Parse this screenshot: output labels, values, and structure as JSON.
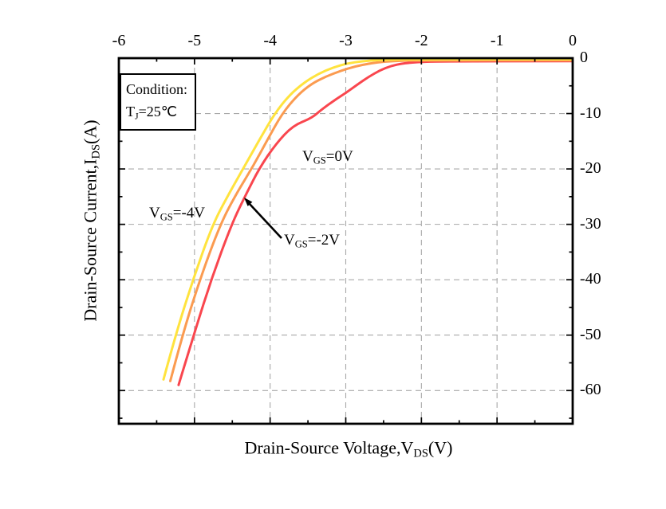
{
  "figure": {
    "background": "#ffffff",
    "condition_box": {
      "line1": "Condition:",
      "line2_pre": "T",
      "line2_sub": "J",
      "line2_post": "=25℃"
    },
    "x_axis": {
      "title_pre": "Drain-Source Voltage,V",
      "title_sub": "DS",
      "title_post": "(V)",
      "tick_labels": [
        "-6",
        "-5",
        "-4",
        "-3",
        "-2",
        "-1",
        "0"
      ]
    },
    "y_axis": {
      "title_pre": "Drain-Source Current,I",
      "title_sub": "DS",
      "title_post": "(A)",
      "tick_labels": [
        "0",
        "-10",
        "-20",
        "-30",
        "-40",
        "-50",
        "-60"
      ]
    },
    "curve_labels": {
      "vgs_m4": {
        "pre": "V",
        "sub": "GS",
        "post": "=-4V"
      },
      "vgs_0": {
        "pre": "V",
        "sub": "GS",
        "post": "=0V"
      },
      "vgs_m2": {
        "pre": "V",
        "sub": "GS",
        "post": "=-2V"
      }
    }
  },
  "chart_data": {
    "type": "line",
    "title": "",
    "xlabel": "Drain-Source Voltage,VDS(V)",
    "ylabel": "Drain-Source Current,IDS(A)",
    "condition": "TJ=25℃",
    "xlim": [
      -6,
      0
    ],
    "ylim": [
      -66,
      0
    ],
    "x_major_ticks": [
      -6,
      -5,
      -4,
      -3,
      -2,
      -1,
      0
    ],
    "x_minor_ticks": [
      -5.5,
      -4.5,
      -3.5,
      -2.5,
      -1.5,
      -0.5
    ],
    "y_major_ticks": [
      0,
      -10,
      -20,
      -30,
      -40,
      -50,
      -60
    ],
    "y_minor_ticks": [
      -5,
      -15,
      -25,
      -35,
      -45,
      -55,
      -65
    ],
    "grid": {
      "x_lines": [
        -5,
        -4,
        -3,
        -2,
        -1
      ],
      "y_lines": [
        -10,
        -20,
        -30,
        -40,
        -50,
        -60
      ],
      "style": "dashed",
      "color": "#a8a8a8"
    },
    "legend_position": "none",
    "axis_color": "#000000",
    "series": [
      {
        "name": "VGS=-4V",
        "color": "#ffe33e",
        "points": [
          [
            -5.41,
            -58
          ],
          [
            -5.25,
            -50
          ],
          [
            -5.02,
            -40
          ],
          [
            -4.76,
            -30
          ],
          [
            -4.55,
            -24.6
          ],
          [
            -4.35,
            -19.8
          ],
          [
            -4.14,
            -14.7
          ],
          [
            -3.94,
            -10
          ],
          [
            -3.74,
            -6.6
          ],
          [
            -3.55,
            -4.4
          ],
          [
            -3.36,
            -2.8
          ],
          [
            -3.17,
            -1.7
          ],
          [
            -2.98,
            -0.95
          ],
          [
            -2.78,
            -0.55
          ],
          [
            -2.58,
            -0.35
          ],
          [
            -2.35,
            -0.25
          ],
          [
            -2.0,
            -0.2
          ],
          [
            0,
            -0.2
          ]
        ]
      },
      {
        "name": "VGS=-2V",
        "color": "#fb9b50",
        "points": [
          [
            -5.32,
            -58.3
          ],
          [
            -5.16,
            -50
          ],
          [
            -4.93,
            -40
          ],
          [
            -4.66,
            -30
          ],
          [
            -4.44,
            -24.3
          ],
          [
            -4.22,
            -19.4
          ],
          [
            -4.03,
            -14.6
          ],
          [
            -3.84,
            -10
          ],
          [
            -3.64,
            -6.7
          ],
          [
            -3.45,
            -4.6
          ],
          [
            -3.26,
            -3.3
          ],
          [
            -3.07,
            -2.3
          ],
          [
            -2.88,
            -1.5
          ],
          [
            -2.68,
            -0.95
          ],
          [
            -2.48,
            -0.6
          ],
          [
            -2.25,
            -0.45
          ],
          [
            -1.95,
            -0.4
          ],
          [
            0,
            -0.4
          ]
        ]
      },
      {
        "name": "VGS=0V",
        "color": "#f9464e",
        "points": [
          [
            -5.21,
            -59
          ],
          [
            -5.01,
            -50
          ],
          [
            -4.78,
            -40
          ],
          [
            -4.51,
            -30
          ],
          [
            -4.32,
            -24.6
          ],
          [
            -4.14,
            -19.8
          ],
          [
            -3.92,
            -15.4
          ],
          [
            -3.7,
            -12.2
          ],
          [
            -3.45,
            -10.8
          ],
          [
            -3.33,
            -9.4
          ],
          [
            -3.15,
            -7.6
          ],
          [
            -3.0,
            -6.3
          ],
          [
            -2.85,
            -4.8
          ],
          [
            -2.7,
            -3.4
          ],
          [
            -2.55,
            -2.2
          ],
          [
            -2.4,
            -1.4
          ],
          [
            -2.25,
            -0.95
          ],
          [
            -2.05,
            -0.7
          ],
          [
            -1.8,
            -0.58
          ],
          [
            0,
            -0.55
          ]
        ]
      }
    ],
    "annotations": [
      {
        "text": "VGS=-4V",
        "refers_to": "VGS=-4V curve",
        "arrow": false
      },
      {
        "text": "VGS=0V",
        "refers_to": "VGS=0V curve",
        "arrow": false
      },
      {
        "text": "VGS=-2V",
        "refers_to": "VGS=-2V curve",
        "arrow": true
      }
    ]
  }
}
